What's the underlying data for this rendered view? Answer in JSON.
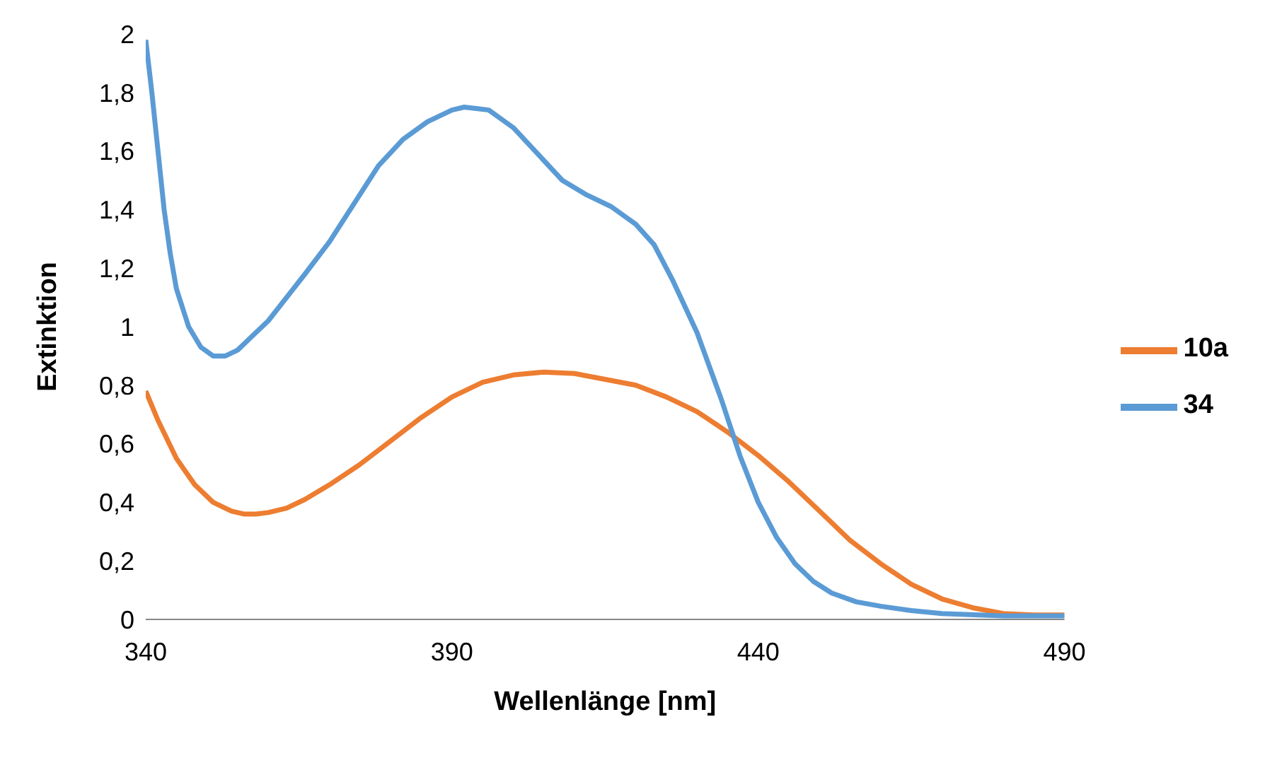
{
  "chart_data": {
    "type": "line",
    "xlabel": "Wellenlänge [nm]",
    "ylabel": "Extinktion",
    "xlim": [
      340,
      490
    ],
    "xticks": [
      340,
      390,
      440,
      490
    ],
    "ylim": [
      0,
      2
    ],
    "yticks": [
      0,
      {
        "value": 0.2,
        "label": "0,2"
      },
      {
        "value": 0.4,
        "label": "0,4"
      },
      {
        "value": 0.6,
        "label": "0,6"
      },
      {
        "value": 0.8,
        "label": "0,8"
      },
      1,
      {
        "value": 1.2,
        "label": "1,2"
      },
      {
        "value": 1.4,
        "label": "1,4"
      },
      {
        "value": 1.6,
        "label": "1,6"
      },
      {
        "value": 1.8,
        "label": "1,8"
      },
      2
    ],
    "grid": false,
    "legend": "right",
    "marker": "none",
    "line_style": "solid",
    "series": [
      {
        "name": "10a",
        "color": "#ed7d31",
        "x": [
          340,
          342,
          345,
          348,
          351,
          354,
          356,
          358,
          360,
          363,
          366,
          370,
          375,
          380,
          385,
          390,
          395,
          400,
          405,
          410,
          415,
          420,
          425,
          430,
          435,
          440,
          445,
          450,
          455,
          460,
          465,
          470,
          475,
          480,
          485,
          490
        ],
        "values": [
          0.78,
          0.68,
          0.55,
          0.46,
          0.4,
          0.37,
          0.36,
          0.36,
          0.365,
          0.38,
          0.41,
          0.46,
          0.53,
          0.61,
          0.69,
          0.76,
          0.81,
          0.835,
          0.845,
          0.84,
          0.82,
          0.8,
          0.76,
          0.71,
          0.64,
          0.56,
          0.47,
          0.37,
          0.27,
          0.19,
          0.12,
          0.07,
          0.04,
          0.02,
          0.015,
          0.015
        ]
      },
      {
        "name": "34",
        "color": "#5b9bd5",
        "x": [
          340,
          341,
          342,
          343,
          344,
          345,
          347,
          349,
          351,
          353,
          355,
          357,
          360,
          363,
          366,
          370,
          374,
          378,
          382,
          386,
          390,
          392,
          394,
          396,
          400,
          404,
          408,
          412,
          416,
          420,
          423,
          426,
          430,
          434,
          437,
          440,
          443,
          446,
          449,
          452,
          456,
          460,
          465,
          470,
          480,
          490
        ],
        "values": [
          1.98,
          1.8,
          1.6,
          1.4,
          1.25,
          1.13,
          1.0,
          0.93,
          0.9,
          0.9,
          0.92,
          0.96,
          1.02,
          1.1,
          1.18,
          1.29,
          1.42,
          1.55,
          1.64,
          1.7,
          1.74,
          1.75,
          1.745,
          1.74,
          1.68,
          1.59,
          1.5,
          1.45,
          1.41,
          1.35,
          1.28,
          1.16,
          0.98,
          0.75,
          0.56,
          0.4,
          0.28,
          0.19,
          0.13,
          0.09,
          0.06,
          0.045,
          0.03,
          0.02,
          0.012,
          0.012
        ]
      }
    ]
  }
}
